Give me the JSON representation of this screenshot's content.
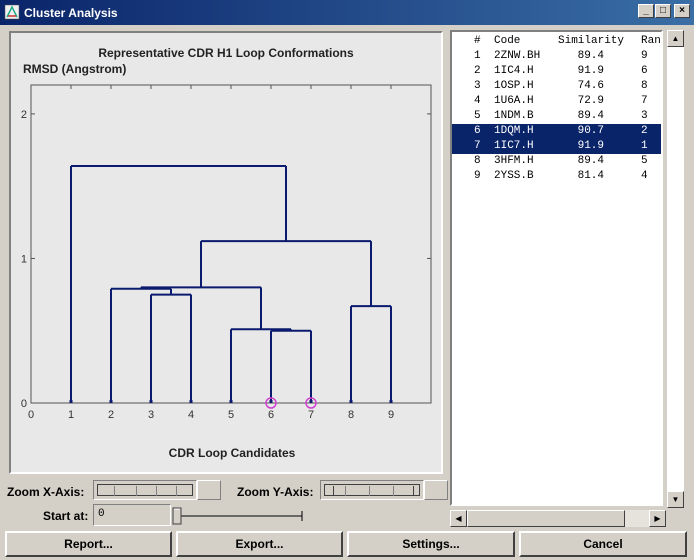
{
  "window": {
    "title": "Cluster Analysis",
    "controls": [
      "_",
      "□",
      "×"
    ]
  },
  "chart_data": {
    "type": "dendrogram",
    "title": "Representative CDR H1 Loop Conformations",
    "ylabel": "RMSD (Angstrom)",
    "xlabel": "CDR Loop Candidates",
    "x_ticks": [
      "0",
      "1",
      "2",
      "3",
      "4",
      "5",
      "6",
      "7",
      "8",
      "9"
    ],
    "y_ticks": [
      "0",
      "1",
      "2"
    ],
    "ylim": [
      0,
      2.2
    ],
    "xlim": [
      0,
      10
    ],
    "leaves": [
      1,
      2,
      3,
      4,
      5,
      6,
      7,
      8,
      9
    ],
    "highlighted_leaves": [
      6,
      7
    ],
    "merges": [
      {
        "left": 3.0,
        "right": 4.0,
        "height": 0.75
      },
      {
        "left": 6.0,
        "right": 7.0,
        "height": 0.5
      },
      {
        "left": 5.0,
        "right": 6.5,
        "height": 0.51
      },
      {
        "left": 2.0,
        "right": 3.5,
        "height": 0.79
      },
      {
        "left": 8.0,
        "right": 9.0,
        "height": 0.67
      },
      {
        "left": 2.75,
        "right": 5.75,
        "height": 0.8
      },
      {
        "left": 4.25,
        "right": 8.5,
        "height": 1.12
      },
      {
        "left": 1.0,
        "right": 6.375,
        "height": 1.64
      }
    ]
  },
  "zoom": {
    "x_label": "Zoom X-Axis:",
    "y_label": "Zoom Y-Axis:"
  },
  "start": {
    "label": "Start at:",
    "value": "0"
  },
  "table": {
    "headers": [
      "#",
      "Code",
      "Similarity",
      "Ran"
    ],
    "rows": [
      {
        "num": "1",
        "code": "2ZNW.BH",
        "sim": "89.4",
        "rank": "9",
        "selected": false
      },
      {
        "num": "2",
        "code": "1IC4.H",
        "sim": "91.9",
        "rank": "6",
        "selected": false
      },
      {
        "num": "3",
        "code": "1OSP.H",
        "sim": "74.6",
        "rank": "8",
        "selected": false
      },
      {
        "num": "4",
        "code": "1U6A.H",
        "sim": "72.9",
        "rank": "7",
        "selected": false
      },
      {
        "num": "5",
        "code": "1NDM.B",
        "sim": "89.4",
        "rank": "3",
        "selected": false
      },
      {
        "num": "6",
        "code": "1DQM.H",
        "sim": "90.7",
        "rank": "2",
        "selected": true
      },
      {
        "num": "7",
        "code": "1IC7.H",
        "sim": "91.9",
        "rank": "1",
        "selected": true
      },
      {
        "num": "8",
        "code": "3HFM.H",
        "sim": "89.4",
        "rank": "5",
        "selected": false
      },
      {
        "num": "9",
        "code": "2YSS.B",
        "sim": "81.4",
        "rank": "4",
        "selected": false
      }
    ]
  },
  "buttons": {
    "report": "Report...",
    "export": "Export...",
    "settings": "Settings...",
    "cancel": "Cancel"
  },
  "colors": {
    "line": "#0a1a6e",
    "highlight": "#d040d0",
    "selection": "#0a246a"
  }
}
